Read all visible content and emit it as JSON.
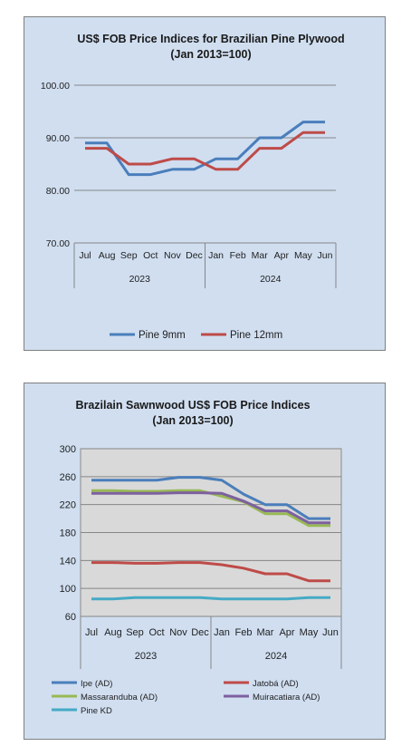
{
  "chart_data": [
    {
      "type": "line",
      "title": "US$ FOB Price Indices for Brazilian  Pine Plywood",
      "subtitle": "(Jan 2013=100)",
      "categories": [
        "Jul",
        "Aug",
        "Sep",
        "Oct",
        "Nov",
        "Dec",
        "Jan",
        "Feb",
        "Mar",
        "Apr",
        "May",
        "Jun"
      ],
      "year_groups": [
        {
          "label": "2023",
          "count": 6
        },
        {
          "label": "2024",
          "count": 6
        }
      ],
      "ylim": [
        70,
        100
      ],
      "yticks": [
        "70.00",
        "80.00",
        "90.00",
        "100.00"
      ],
      "grid": true,
      "legend_position": "bottom",
      "series": [
        {
          "name": "Pine 9mm",
          "color": "#4a7ebb",
          "values": [
            89,
            89,
            83,
            83,
            84,
            84,
            86,
            86,
            90,
            90,
            93,
            93
          ]
        },
        {
          "name": "Pine 12mm",
          "color": "#be4b48",
          "values": [
            88,
            88,
            85,
            85,
            86,
            86,
            84,
            84,
            88,
            88,
            91,
            91
          ]
        }
      ]
    },
    {
      "type": "line",
      "title": "Brazilain Sawnwood US$ FOB Price Indices",
      "subtitle": "(Jan 2013=100)",
      "categories": [
        "Jul",
        "Aug",
        "Sep",
        "Oct",
        "Nov",
        "Dec",
        "Jan",
        "Feb",
        "Mar",
        "Apr",
        "May",
        "Jun"
      ],
      "year_groups": [
        {
          "label": "2023",
          "count": 6
        },
        {
          "label": "2024",
          "count": 6
        }
      ],
      "ylim": [
        60,
        300
      ],
      "yticks": [
        "60",
        "100",
        "140",
        "180",
        "220",
        "260",
        "300"
      ],
      "grid": true,
      "plot_background": "#d9d9d9",
      "legend_position": "bottom",
      "series": [
        {
          "name": "Ipe (AD)",
          "color": "#4a7ebb",
          "values": [
            255,
            255,
            255,
            255,
            259,
            259,
            255,
            235,
            220,
            220,
            200,
            200
          ]
        },
        {
          "name": "Jatobá (AD)",
          "color": "#be4b48",
          "values": [
            137,
            137,
            136,
            136,
            137,
            137,
            134,
            129,
            121,
            121,
            111,
            111
          ]
        },
        {
          "name": "Massaranduba (AD)",
          "color": "#98b954",
          "values": [
            240,
            240,
            239,
            239,
            240,
            240,
            232,
            224,
            207,
            207,
            190,
            190
          ]
        },
        {
          "name": "Muiracatiara (AD)",
          "color": "#7d60a0",
          "values": [
            236,
            236,
            236,
            236,
            237,
            237,
            236,
            225,
            211,
            211,
            194,
            194
          ]
        },
        {
          "name": "Pine KD",
          "color": "#46aac5",
          "values": [
            85,
            85,
            87,
            87,
            87,
            87,
            85,
            85,
            85,
            85,
            87,
            87
          ]
        }
      ]
    }
  ]
}
